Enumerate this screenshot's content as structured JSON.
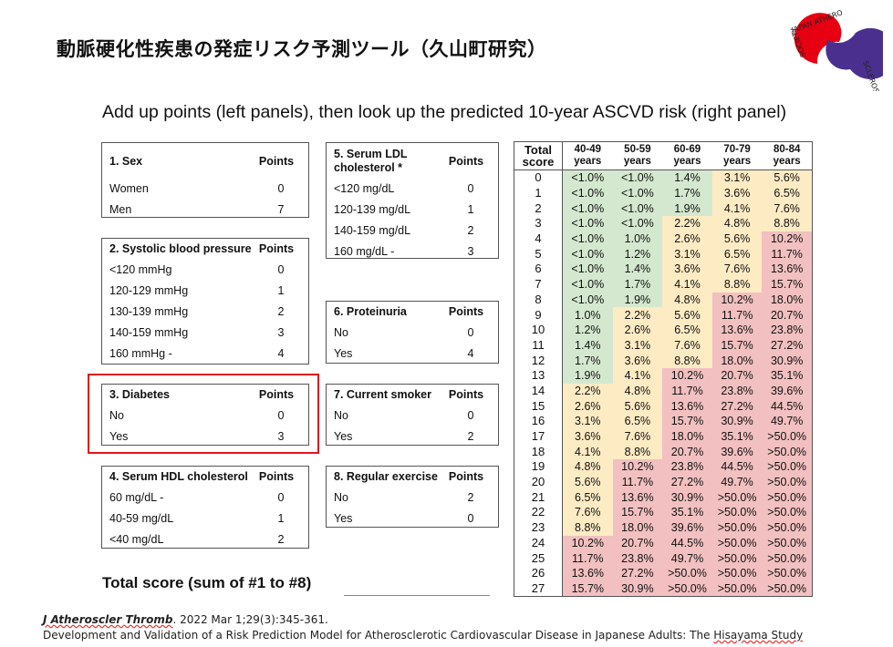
{
  "title": "動脈硬化性疾患の発症リスク予測ツール（久山町研究）",
  "subtitle": "Add up points (left panels), then look up the predicted 10-year ASCVD risk (right panel)",
  "logo": {
    "text": "JAPAN ATHEROSCLEROSIS SOCIETY",
    "colors": {
      "red": "#e60012",
      "purple": "#4b2f8f"
    }
  },
  "panels": [
    {
      "title": "1. Sex",
      "points_label": "Points",
      "rows": [
        [
          "Women",
          "0"
        ],
        [
          "Men",
          "7"
        ]
      ]
    },
    {
      "title": "2. Systolic blood pressure",
      "points_label": "Points",
      "rows": [
        [
          "<120 mmHg",
          "0"
        ],
        [
          "120-129 mmHg",
          "1"
        ],
        [
          "130-139 mmHg",
          "2"
        ],
        [
          "140-159 mmHg",
          "3"
        ],
        [
          "160 mmHg -",
          "4"
        ]
      ]
    },
    {
      "title": "3. Diabetes",
      "points_label": "Points",
      "rows": [
        [
          "No",
          "0"
        ],
        [
          "Yes",
          "3"
        ]
      ],
      "highlighted": true
    },
    {
      "title": "4. Serum HDL cholesterol",
      "points_label": "Points",
      "rows": [
        [
          "60 mg/dL -",
          "0"
        ],
        [
          "40-59 mg/dL",
          "1"
        ],
        [
          "<40 mg/dL",
          "2"
        ]
      ]
    },
    {
      "title": "5. Serum LDL cholesterol *",
      "points_label": "Points",
      "rows": [
        [
          "<120 mg/dL",
          "0"
        ],
        [
          "120-139 mg/dL",
          "1"
        ],
        [
          "140-159 mg/dL",
          "2"
        ],
        [
          "160 mg/dL -",
          "3"
        ]
      ]
    },
    {
      "title": "6. Proteinuria",
      "points_label": "Points",
      "rows": [
        [
          "No",
          "0"
        ],
        [
          "Yes",
          "4"
        ]
      ]
    },
    {
      "title": "7. Current smoker",
      "points_label": "Points",
      "rows": [
        [
          "No",
          "0"
        ],
        [
          "Yes",
          "2"
        ]
      ]
    },
    {
      "title": "8. Regular exercise",
      "points_label": "Points",
      "rows": [
        [
          "No",
          "2"
        ],
        [
          "Yes",
          "0"
        ]
      ]
    }
  ],
  "total_label": "Total score (sum of #1 to #8)",
  "risk_table": {
    "headers": [
      [
        "Total",
        "score"
      ],
      [
        "40-49",
        "years"
      ],
      [
        "50-59",
        "years"
      ],
      [
        "60-69",
        "years"
      ],
      [
        "70-79",
        "years"
      ],
      [
        "80-84",
        "years"
      ]
    ],
    "legend_colors": {
      "low": "#d4e8cf",
      "mid": "#fdebc4",
      "high": "#f2c0c0"
    },
    "rows": [
      [
        "0",
        "<1.0%",
        "<1.0%",
        "1.4%",
        "3.1%",
        "5.6%"
      ],
      [
        "1",
        "<1.0%",
        "<1.0%",
        "1.7%",
        "3.6%",
        "6.5%"
      ],
      [
        "2",
        "<1.0%",
        "<1.0%",
        "1.9%",
        "4.1%",
        "7.6%"
      ],
      [
        "3",
        "<1.0%",
        "<1.0%",
        "2.2%",
        "4.8%",
        "8.8%"
      ],
      [
        "4",
        "<1.0%",
        "1.0%",
        "2.6%",
        "5.6%",
        "10.2%"
      ],
      [
        "5",
        "<1.0%",
        "1.2%",
        "3.1%",
        "6.5%",
        "11.7%"
      ],
      [
        "6",
        "<1.0%",
        "1.4%",
        "3.6%",
        "7.6%",
        "13.6%"
      ],
      [
        "7",
        "<1.0%",
        "1.7%",
        "4.1%",
        "8.8%",
        "15.7%"
      ],
      [
        "8",
        "<1.0%",
        "1.9%",
        "4.8%",
        "10.2%",
        "18.0%"
      ],
      [
        "9",
        "1.0%",
        "2.2%",
        "5.6%",
        "11.7%",
        "20.7%"
      ],
      [
        "10",
        "1.2%",
        "2.6%",
        "6.5%",
        "13.6%",
        "23.8%"
      ],
      [
        "11",
        "1.4%",
        "3.1%",
        "7.6%",
        "15.7%",
        "27.2%"
      ],
      [
        "12",
        "1.7%",
        "3.6%",
        "8.8%",
        "18.0%",
        "30.9%"
      ],
      [
        "13",
        "1.9%",
        "4.1%",
        "10.2%",
        "20.7%",
        "35.1%"
      ],
      [
        "14",
        "2.2%",
        "4.8%",
        "11.7%",
        "23.8%",
        "39.6%"
      ],
      [
        "15",
        "2.6%",
        "5.6%",
        "13.6%",
        "27.2%",
        "44.5%"
      ],
      [
        "16",
        "3.1%",
        "6.5%",
        "15.7%",
        "30.9%",
        "49.7%"
      ],
      [
        "17",
        "3.6%",
        "7.6%",
        "18.0%",
        "35.1%",
        ">50.0%"
      ],
      [
        "18",
        "4.1%",
        "8.8%",
        "20.7%",
        "39.6%",
        ">50.0%"
      ],
      [
        "19",
        "4.8%",
        "10.2%",
        "23.8%",
        "44.5%",
        ">50.0%"
      ],
      [
        "20",
        "5.6%",
        "11.7%",
        "27.2%",
        "49.7%",
        ">50.0%"
      ],
      [
        "21",
        "6.5%",
        "13.6%",
        "30.9%",
        ">50.0%",
        ">50.0%"
      ],
      [
        "22",
        "7.6%",
        "15.7%",
        "35.1%",
        ">50.0%",
        ">50.0%"
      ],
      [
        "23",
        "8.8%",
        "18.0%",
        "39.6%",
        ">50.0%",
        ">50.0%"
      ],
      [
        "24",
        "10.2%",
        "20.7%",
        "44.5%",
        ">50.0%",
        ">50.0%"
      ],
      [
        "25",
        "11.7%",
        "23.8%",
        "49.7%",
        ">50.0%",
        ">50.0%"
      ],
      [
        "26",
        "13.6%",
        "27.2%",
        ">50.0%",
        ">50.0%",
        ">50.0%"
      ],
      [
        "27",
        "15.7%",
        "30.9%",
        ">50.0%",
        ">50.0%",
        ">50.0%"
      ]
    ]
  },
  "reference": {
    "journal": "J Atheroscler Thromb",
    "citation": ". 2022 Mar 1;29(3):345-361.",
    "article_title_main": "Development and Validation of a Risk Prediction Model for Atherosclerotic Cardiovascular Disease in Japanese Adults: The ",
    "article_title_end": "Hisayama Study"
  }
}
